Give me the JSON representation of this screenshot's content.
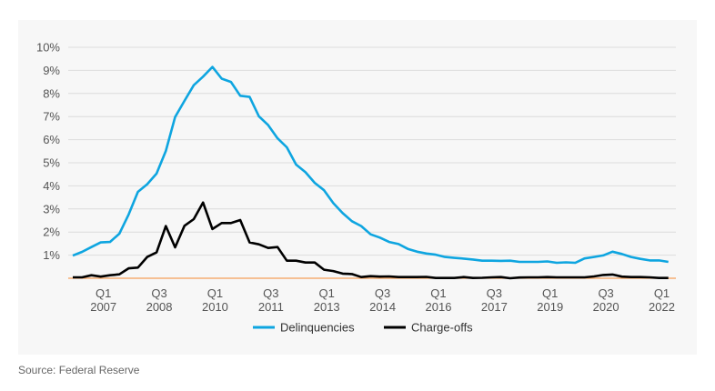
{
  "chart_data": {
    "type": "line",
    "x": [
      "2006 Q2",
      "2006 Q3",
      "2006 Q4",
      "2007 Q1",
      "2007 Q2",
      "2007 Q3",
      "2007 Q4",
      "2008 Q1",
      "2008 Q2",
      "2008 Q3",
      "2008 Q4",
      "2009 Q1",
      "2009 Q2",
      "2009 Q3",
      "2009 Q4",
      "2010 Q1",
      "2010 Q2",
      "2010 Q3",
      "2010 Q4",
      "2011 Q1",
      "2011 Q2",
      "2011 Q3",
      "2011 Q4",
      "2012 Q1",
      "2012 Q2",
      "2012 Q3",
      "2012 Q4",
      "2013 Q1",
      "2013 Q2",
      "2013 Q3",
      "2013 Q4",
      "2014 Q1",
      "2014 Q2",
      "2014 Q3",
      "2014 Q4",
      "2015 Q1",
      "2015 Q2",
      "2015 Q3",
      "2015 Q4",
      "2016 Q1",
      "2016 Q2",
      "2016 Q3",
      "2016 Q4",
      "2017 Q1",
      "2017 Q2",
      "2017 Q3",
      "2017 Q4",
      "2018 Q1",
      "2018 Q2",
      "2018 Q3",
      "2018 Q4",
      "2019 Q1",
      "2019 Q2",
      "2019 Q3",
      "2019 Q4",
      "2020 Q1",
      "2020 Q2",
      "2020 Q3",
      "2020 Q4",
      "2021 Q1",
      "2021 Q2",
      "2021 Q3",
      "2021 Q4",
      "2022 Q1",
      "2022 Q2"
    ],
    "series": [
      {
        "name": "Delinquencies",
        "color": "#0ea5e0",
        "values": [
          0.98,
          1.14,
          1.35,
          1.55,
          1.57,
          1.93,
          2.76,
          3.74,
          4.07,
          4.53,
          5.51,
          6.98,
          7.68,
          8.36,
          8.73,
          9.15,
          8.64,
          8.5,
          7.9,
          7.85,
          7.01,
          6.63,
          6.06,
          5.67,
          4.92,
          4.59,
          4.13,
          3.81,
          3.25,
          2.82,
          2.47,
          2.26,
          1.9,
          1.76,
          1.57,
          1.48,
          1.27,
          1.15,
          1.07,
          1.02,
          0.92,
          0.88,
          0.85,
          0.81,
          0.76,
          0.76,
          0.75,
          0.76,
          0.71,
          0.71,
          0.71,
          0.73,
          0.67,
          0.69,
          0.67,
          0.86,
          0.92,
          0.99,
          1.15,
          1.05,
          0.92,
          0.84,
          0.77,
          0.77,
          0.71
        ]
      },
      {
        "name": "Charge-offs",
        "color": "#000000",
        "values": [
          0.04,
          0.04,
          0.13,
          0.07,
          0.13,
          0.17,
          0.43,
          0.46,
          0.92,
          1.12,
          2.26,
          1.34,
          2.27,
          2.56,
          3.28,
          2.13,
          2.39,
          2.39,
          2.52,
          1.55,
          1.47,
          1.31,
          1.35,
          0.76,
          0.76,
          0.68,
          0.68,
          0.37,
          0.31,
          0.2,
          0.18,
          0.05,
          0.09,
          0.07,
          0.08,
          0.05,
          0.05,
          0.05,
          0.06,
          0.01,
          0.01,
          0.01,
          0.05,
          0.01,
          0.02,
          0.04,
          0.05,
          0.0,
          0.03,
          0.04,
          0.04,
          0.05,
          0.04,
          0.04,
          0.04,
          0.04,
          0.08,
          0.14,
          0.16,
          0.07,
          0.05,
          0.05,
          0.04,
          0.01,
          0.01
        ]
      }
    ],
    "x_tick_labels": [
      {
        "quarter": "Q1",
        "year": "2007",
        "x": "2007 Q1"
      },
      {
        "quarter": "Q3",
        "year": "2008",
        "x": "2008 Q3"
      },
      {
        "quarter": "Q1",
        "year": "2010",
        "x": "2010 Q1"
      },
      {
        "quarter": "Q3",
        "year": "2011",
        "x": "2011 Q3"
      },
      {
        "quarter": "Q1",
        "year": "2013",
        "x": "2013 Q1"
      },
      {
        "quarter": "Q3",
        "year": "2014",
        "x": "2014 Q3"
      },
      {
        "quarter": "Q1",
        "year": "2016",
        "x": "2016 Q1"
      },
      {
        "quarter": "Q3",
        "year": "2017",
        "x": "2017 Q3"
      },
      {
        "quarter": "Q1",
        "year": "2019",
        "x": "2019 Q1"
      },
      {
        "quarter": "Q3",
        "year": "2020",
        "x": "2020 Q3"
      },
      {
        "quarter": "Q1",
        "year": "2022",
        "x": "2022 Q1"
      }
    ],
    "y_tick_labels": [
      "1%",
      "2%",
      "3%",
      "4%",
      "5%",
      "6%",
      "7%",
      "8%",
      "9%",
      "10%"
    ],
    "ylim": [
      0,
      10
    ],
    "grid": true,
    "zero_line_color": "#f5a05a",
    "legend_position": "bottom"
  },
  "source": "Source: Federal Reserve"
}
